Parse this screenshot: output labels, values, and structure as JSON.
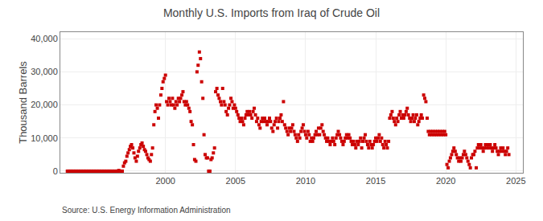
{
  "chart_data": {
    "type": "scatter",
    "title": "Monthly U.S. Imports from Iraq of Crude Oil",
    "ylabel": "Thousand Barrels",
    "annotations": [
      "Source: U.S. Energy Information Administration"
    ],
    "color": "#cc0000",
    "marker": "square",
    "grid": true,
    "xlim": [
      1992.5,
      2025.5
    ],
    "ylim": [
      -500,
      42000
    ],
    "xticks": [
      2000,
      2005,
      2010,
      2015,
      2020,
      2025
    ],
    "yticks": [
      0,
      {
        "value": 10000,
        "label": "10,000"
      },
      {
        "value": 20000,
        "label": "20,000"
      },
      {
        "value": 30000,
        "label": "30,000"
      },
      {
        "value": 40000,
        "label": "40,000"
      }
    ],
    "x": [
      1993.0,
      1993.08,
      1993.17,
      1993.25,
      1993.33,
      1993.42,
      1993.5,
      1993.58,
      1993.67,
      1993.75,
      1993.83,
      1993.92,
      1994.0,
      1994.08,
      1994.17,
      1994.25,
      1994.33,
      1994.42,
      1994.5,
      1994.58,
      1994.67,
      1994.75,
      1994.83,
      1994.92,
      1995.0,
      1995.08,
      1995.17,
      1995.25,
      1995.33,
      1995.42,
      1995.5,
      1995.58,
      1995.67,
      1995.75,
      1995.83,
      1995.92,
      1996.0,
      1996.08,
      1996.17,
      1996.25,
      1996.33,
      1996.42,
      1996.5,
      1996.58,
      1996.67,
      1996.75,
      1996.83,
      1996.92,
      1997.0,
      1997.08,
      1997.17,
      1997.25,
      1997.33,
      1997.42,
      1997.5,
      1997.58,
      1997.67,
      1997.75,
      1997.83,
      1997.92,
      1998.0,
      1998.08,
      1998.17,
      1998.25,
      1998.33,
      1998.42,
      1998.5,
      1998.58,
      1998.67,
      1998.75,
      1998.83,
      1998.92,
      1999.0,
      1999.08,
      1999.17,
      1999.25,
      1999.33,
      1999.42,
      1999.5,
      1999.58,
      1999.67,
      1999.75,
      1999.83,
      1999.92,
      2000.0,
      2000.08,
      2000.17,
      2000.25,
      2000.33,
      2000.42,
      2000.5,
      2000.58,
      2000.67,
      2000.75,
      2000.83,
      2000.92,
      2001.0,
      2001.08,
      2001.17,
      2001.25,
      2001.33,
      2001.42,
      2001.5,
      2001.58,
      2001.67,
      2001.75,
      2001.83,
      2001.92,
      2002.0,
      2002.08,
      2002.17,
      2002.25,
      2002.33,
      2002.42,
      2002.5,
      2002.58,
      2002.67,
      2002.75,
      2002.83,
      2002.92,
      2003.0,
      2003.08,
      2003.17,
      2003.25,
      2003.33,
      2003.42,
      2003.5,
      2003.58,
      2003.67,
      2003.75,
      2003.83,
      2003.92,
      2004.0,
      2004.08,
      2004.17,
      2004.25,
      2004.33,
      2004.42,
      2004.5,
      2004.58,
      2004.67,
      2004.75,
      2004.83,
      2004.92,
      2005.0,
      2005.08,
      2005.17,
      2005.25,
      2005.33,
      2005.42,
      2005.5,
      2005.58,
      2005.67,
      2005.75,
      2005.83,
      2005.92,
      2006.0,
      2006.08,
      2006.17,
      2006.25,
      2006.33,
      2006.42,
      2006.5,
      2006.58,
      2006.67,
      2006.75,
      2006.83,
      2006.92,
      2007.0,
      2007.08,
      2007.17,
      2007.25,
      2007.33,
      2007.42,
      2007.5,
      2007.58,
      2007.67,
      2007.75,
      2007.83,
      2007.92,
      2008.0,
      2008.08,
      2008.17,
      2008.25,
      2008.33,
      2008.42,
      2008.5,
      2008.58,
      2008.67,
      2008.75,
      2008.83,
      2008.92,
      2009.0,
      2009.08,
      2009.17,
      2009.25,
      2009.33,
      2009.42,
      2009.5,
      2009.58,
      2009.67,
      2009.75,
      2009.83,
      2009.92,
      2010.0,
      2010.08,
      2010.17,
      2010.25,
      2010.33,
      2010.42,
      2010.5,
      2010.58,
      2010.67,
      2010.75,
      2010.83,
      2010.92,
      2011.0,
      2011.08,
      2011.17,
      2011.25,
      2011.33,
      2011.42,
      2011.5,
      2011.58,
      2011.67,
      2011.75,
      2011.83,
      2011.92,
      2012.0,
      2012.08,
      2012.17,
      2012.25,
      2012.33,
      2012.42,
      2012.5,
      2012.58,
      2012.67,
      2012.75,
      2012.83,
      2012.92,
      2013.0,
      2013.08,
      2013.17,
      2013.25,
      2013.33,
      2013.42,
      2013.5,
      2013.58,
      2013.67,
      2013.75,
      2013.83,
      2013.92,
      2014.0,
      2014.08,
      2014.17,
      2014.25,
      2014.33,
      2014.42,
      2014.5,
      2014.58,
      2014.67,
      2014.75,
      2014.83,
      2014.92,
      2015.0,
      2015.08,
      2015.17,
      2015.25,
      2015.33,
      2015.42,
      2015.5,
      2015.58,
      2015.67,
      2015.75,
      2015.83,
      2015.92,
      2016.0,
      2016.08,
      2016.17,
      2016.25,
      2016.33,
      2016.42,
      2016.5,
      2016.58,
      2016.67,
      2016.75,
      2016.83,
      2016.92,
      2017.0,
      2017.08,
      2017.17,
      2017.25,
      2017.33,
      2017.42,
      2017.5,
      2017.58,
      2017.67,
      2017.75,
      2017.83,
      2017.92,
      2018.0,
      2018.08,
      2018.17,
      2018.25,
      2018.33,
      2018.42,
      2018.5,
      2018.58,
      2018.67,
      2018.75,
      2018.83,
      2018.92,
      2019.0,
      2019.08,
      2019.17,
      2019.25,
      2019.33,
      2019.42,
      2019.5,
      2019.58,
      2019.67,
      2019.75,
      2019.83,
      2019.92,
      2020.0,
      2020.08,
      2020.17,
      2020.25,
      2020.33,
      2020.42,
      2020.5,
      2020.58,
      2020.67,
      2020.75,
      2020.83,
      2020.92,
      2021.0,
      2021.08,
      2021.17,
      2021.25,
      2021.33,
      2021.42,
      2021.5,
      2021.58,
      2021.67,
      2021.75,
      2021.83,
      2021.92,
      2022.0,
      2022.08,
      2022.17,
      2022.25,
      2022.33,
      2022.42,
      2022.5,
      2022.58,
      2022.67,
      2022.75,
      2022.83,
      2022.92,
      2023.0,
      2023.08,
      2023.17,
      2023.25,
      2023.33,
      2023.42,
      2023.5,
      2023.58,
      2023.67,
      2023.75,
      2023.83,
      2023.92,
      2024.0,
      2024.08,
      2024.17,
      2024.25,
      2024.33,
      2024.42,
      2024.5
    ],
    "values": [
      0,
      0,
      0,
      0,
      0,
      0,
      0,
      0,
      0,
      0,
      0,
      0,
      0,
      0,
      0,
      0,
      0,
      0,
      0,
      0,
      0,
      0,
      0,
      0,
      0,
      0,
      0,
      0,
      0,
      0,
      0,
      0,
      0,
      0,
      0,
      0,
      0,
      0,
      0,
      0,
      0,
      0,
      0,
      0,
      200,
      0,
      0,
      0,
      1500,
      2500,
      3000,
      4500,
      5500,
      6500,
      7500,
      8000,
      7000,
      5500,
      4000,
      3000,
      4500,
      6000,
      7000,
      8000,
      8500,
      7500,
      6500,
      6000,
      5000,
      4000,
      3500,
      3000,
      5000,
      7000,
      14000,
      18000,
      20000,
      19000,
      16000,
      20000,
      23000,
      25000,
      27000,
      28000,
      29000,
      21000,
      20000,
      22000,
      21000,
      20000,
      22000,
      20000,
      19000,
      21000,
      20000,
      22000,
      21000,
      22000,
      23000,
      24000,
      21000,
      20000,
      21000,
      20000,
      19000,
      18000,
      15000,
      14000,
      8000,
      3500,
      3000,
      30000,
      32000,
      36000,
      34000,
      27000,
      22000,
      11000,
      5000,
      4000,
      4000,
      0,
      0,
      3500,
      4000,
      5500,
      7000,
      24000,
      25000,
      23000,
      22000,
      21000,
      20000,
      25000,
      21000,
      20000,
      18000,
      17000,
      19000,
      20000,
      22000,
      21000,
      19000,
      20000,
      19000,
      18000,
      17000,
      16000,
      15000,
      16000,
      15000,
      14000,
      16000,
      17000,
      18000,
      17000,
      18000,
      17000,
      16000,
      18000,
      19000,
      17000,
      15000,
      16000,
      14000,
      13000,
      15000,
      16000,
      15000,
      16000,
      15000,
      14000,
      15000,
      16000,
      15000,
      13000,
      12000,
      14000,
      15000,
      16000,
      13000,
      15000,
      16000,
      17000,
      15000,
      21000,
      14000,
      13000,
      12000,
      11000,
      13000,
      12000,
      13000,
      14000,
      12000,
      11000,
      10000,
      9000,
      11000,
      10000,
      12000,
      13000,
      14000,
      12000,
      11000,
      10000,
      12000,
      11000,
      9000,
      10000,
      9000,
      10000,
      11000,
      12000,
      11000,
      13000,
      11000,
      13000,
      14000,
      12000,
      11000,
      10000,
      9000,
      10000,
      9000,
      8000,
      9000,
      10000,
      9000,
      8000,
      10000,
      11000,
      12000,
      11000,
      10000,
      9000,
      8000,
      9000,
      10000,
      11000,
      10000,
      11000,
      10000,
      9000,
      8000,
      9000,
      8000,
      7000,
      9000,
      8000,
      9000,
      10000,
      7000,
      9000,
      10000,
      11000,
      9000,
      8000,
      7000,
      9000,
      8000,
      7000,
      8000,
      9000,
      10000,
      9000,
      10000,
      11000,
      9000,
      10000,
      8000,
      7000,
      9000,
      8000,
      7000,
      9000,
      16000,
      17000,
      18000,
      16000,
      15000,
      14000,
      16000,
      15000,
      17000,
      18000,
      16000,
      17000,
      16000,
      17000,
      18000,
      19000,
      17000,
      16000,
      15000,
      16000,
      17000,
      15000,
      16000,
      17000,
      14000,
      15000,
      16000,
      17000,
      16000,
      23000,
      22000,
      21000,
      16000,
      12000,
      11000,
      12000,
      11000,
      12000,
      11000,
      12000,
      11000,
      12000,
      11000,
      12000,
      11000,
      12000,
      11000,
      12000,
      11000,
      2000,
      1000,
      3000,
      4000,
      5000,
      6000,
      7000,
      6000,
      5000,
      4000,
      3000,
      4000,
      3000,
      4000,
      5000,
      6000,
      5000,
      4000,
      3000,
      2000,
      1000,
      4000,
      5000,
      5000,
      6000,
      1000,
      7000,
      8000,
      7000,
      8000,
      7000,
      6000,
      7000,
      8000,
      7000,
      8000,
      7000,
      8000,
      7000,
      6000,
      7000,
      8000,
      7000,
      6000,
      5000,
      6000,
      7000,
      6000,
      7000,
      6000,
      5000,
      6000,
      7000,
      5000
    ]
  }
}
